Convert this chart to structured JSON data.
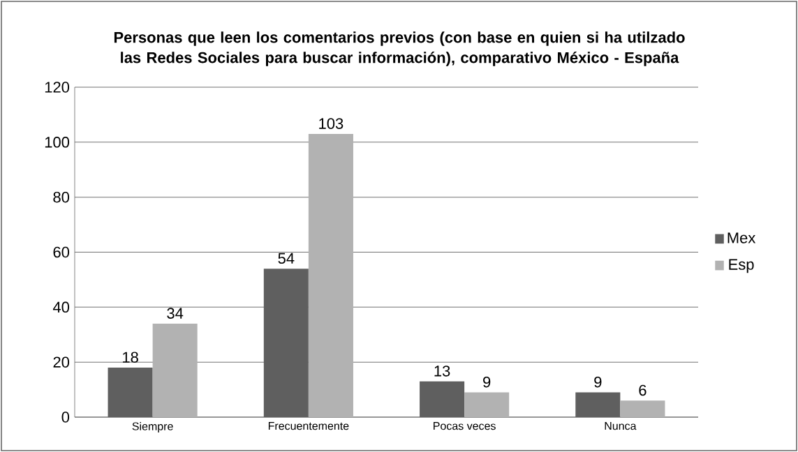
{
  "chart_data": {
    "type": "bar",
    "title": "Personas que leen los comentarios previos (con base en quien si ha utilzado las Redes Sociales para buscar información), comparativo  México - España",
    "categories": [
      "Siempre",
      "Frecuentemente",
      "Pocas veces",
      "Nunca"
    ],
    "series": [
      {
        "name": "Mex",
        "color": "#5f5f5f",
        "values": [
          18,
          54,
          13,
          9
        ]
      },
      {
        "name": "Esp",
        "color": "#b2b2b2",
        "values": [
          34,
          103,
          9,
          6
        ]
      }
    ],
    "ylim": [
      0,
      120
    ],
    "yticks": [
      0,
      20,
      40,
      60,
      80,
      100,
      120
    ],
    "grid": "y",
    "legend": "right",
    "data_labels": true
  }
}
